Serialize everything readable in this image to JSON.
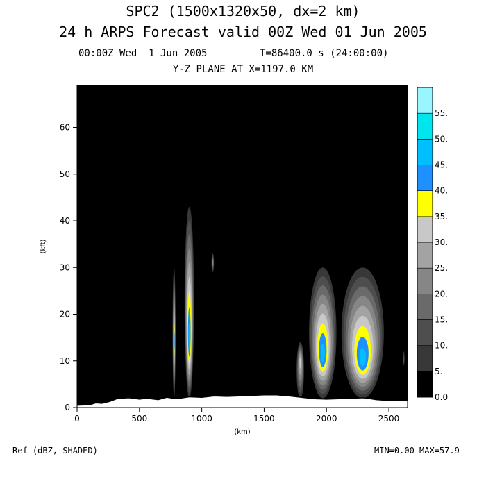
{
  "header": {
    "title_line1": "SPC2 (1500x1320x50, dx=2 km)",
    "title_line2": "24 h ARPS Forecast valid 00Z Wed 01 Jun 2005",
    "valid_time": "00:00Z Wed  1 Jun 2005",
    "model_time": "T=86400.0 s (24:00:00)",
    "plane_label": "Y-Z PLANE AT X=1197.0 KM"
  },
  "footer": {
    "field_label": "Ref (dBZ, SHADED)",
    "minmax": "MIN=0.00 MAX=57.9"
  },
  "chart_data": {
    "type": "heatmap",
    "title": "Y-Z PLANE AT X=1197.0 KM",
    "xlabel": "(km)",
    "ylabel": "(kft)",
    "xlim": [
      0,
      2650
    ],
    "ylim": [
      0,
      69
    ],
    "x_ticks": [
      0,
      500,
      1000,
      1500,
      2000,
      2500
    ],
    "y_ticks": [
      0,
      10,
      20,
      30,
      40,
      50,
      60
    ],
    "field": "Ref (dBZ, SHADED)",
    "min": 0.0,
    "max": 57.9,
    "colorbar": {
      "levels": [
        "0.0",
        "5.",
        "10.",
        "15.",
        "20.",
        "25.",
        "30.",
        "35.",
        "40.",
        "45.",
        "50.",
        "55."
      ],
      "colors": [
        "#000000",
        "#383838",
        "#4e4e4e",
        "#6a6a6a",
        "#868686",
        "#a3a3a3",
        "#c8c8c8",
        "#ffff00",
        "#1e90ff",
        "#00bfff",
        "#00e5ee",
        "#99f5ff"
      ]
    },
    "terrain_kft": [
      [
        0,
        0.5
      ],
      [
        100,
        0.6
      ],
      [
        150,
        1.0
      ],
      [
        200,
        0.9
      ],
      [
        260,
        1.3
      ],
      [
        330,
        2.0
      ],
      [
        420,
        2.1
      ],
      [
        500,
        1.8
      ],
      [
        560,
        2.0
      ],
      [
        650,
        1.7
      ],
      [
        720,
        2.2
      ],
      [
        800,
        1.9
      ],
      [
        900,
        2.3
      ],
      [
        1000,
        2.2
      ],
      [
        1100,
        2.5
      ],
      [
        1200,
        2.4
      ],
      [
        1300,
        2.5
      ],
      [
        1400,
        2.6
      ],
      [
        1500,
        2.7
      ],
      [
        1600,
        2.7
      ],
      [
        1700,
        2.5
      ],
      [
        1800,
        2.2
      ],
      [
        1900,
        1.9
      ],
      [
        2000,
        1.8
      ],
      [
        2100,
        1.9
      ],
      [
        2200,
        2.0
      ],
      [
        2300,
        2.1
      ],
      [
        2400,
        1.7
      ],
      [
        2500,
        1.5
      ],
      [
        2650,
        1.6
      ]
    ],
    "echo_features": [
      {
        "name": "cell-780km",
        "x_center": 778,
        "x_halfwidth": 12,
        "z_bottom": 2,
        "z_top": 30,
        "z_core": 14,
        "max_dbz": 43
      },
      {
        "name": "cell-900km",
        "x_center": 900,
        "x_halfwidth": 38,
        "z_bottom": 2,
        "z_top": 43,
        "z_core": 14,
        "max_dbz": 45
      },
      {
        "name": "anvil-1090km",
        "x_center": 1088,
        "x_halfwidth": 10,
        "z_bottom": 29,
        "z_top": 33,
        "z_core": 31,
        "max_dbz": 20
      },
      {
        "name": "cell-1800km",
        "x_center": 1790,
        "x_halfwidth": 30,
        "z_bottom": 2,
        "z_top": 14,
        "z_core": 10,
        "max_dbz": 33
      },
      {
        "name": "cell-1980km",
        "x_center": 1970,
        "x_halfwidth": 110,
        "z_bottom": 2,
        "z_top": 30,
        "z_core": 11,
        "max_dbz": 45
      },
      {
        "name": "cell-2300km",
        "x_center": 2290,
        "x_halfwidth": 170,
        "z_bottom": 2,
        "z_top": 30,
        "z_core": 10,
        "max_dbz": 45
      },
      {
        "name": "spot-2620km",
        "x_center": 2620,
        "x_halfwidth": 6,
        "z_bottom": 9,
        "z_top": 12,
        "z_core": 10,
        "max_dbz": 12
      }
    ]
  }
}
